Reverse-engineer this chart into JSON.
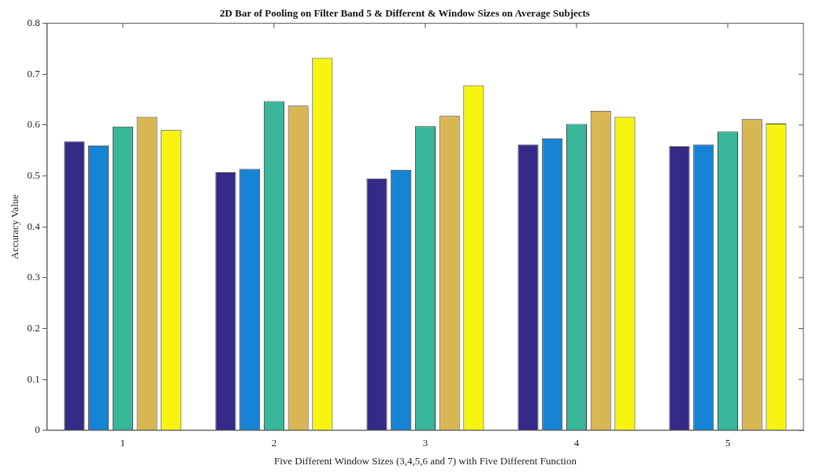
{
  "chart_data": {
    "type": "bar",
    "title": "2D Bar of Pooling on Filter Band 5 & Different & Window Sizes on Average Subjects",
    "xlabel": "Five Different Window Sizes (3,4,5,6 and 7) with Five Different Function",
    "ylabel": "Accuracy Value",
    "categories": [
      "1",
      "2",
      "3",
      "4",
      "5"
    ],
    "series": [
      {
        "color": "#352a87",
        "values": [
          0.568,
          0.507,
          0.495,
          0.562,
          0.558
        ]
      },
      {
        "color": "#1783d4",
        "values": [
          0.56,
          0.514,
          0.512,
          0.574,
          0.562
        ]
      },
      {
        "color": "#38b79a",
        "values": [
          0.597,
          0.647,
          0.598,
          0.602,
          0.587
        ]
      },
      {
        "color": "#d8b653",
        "values": [
          0.616,
          0.638,
          0.618,
          0.628,
          0.612
        ]
      },
      {
        "color": "#f7f50f",
        "values": [
          0.59,
          0.732,
          0.678,
          0.616,
          0.603
        ]
      }
    ],
    "ylim": [
      0,
      0.8
    ],
    "yticks": [
      0,
      0.1,
      0.2,
      0.3,
      0.4,
      0.5,
      0.6,
      0.7,
      0.8
    ],
    "grid": false,
    "legend": false
  }
}
